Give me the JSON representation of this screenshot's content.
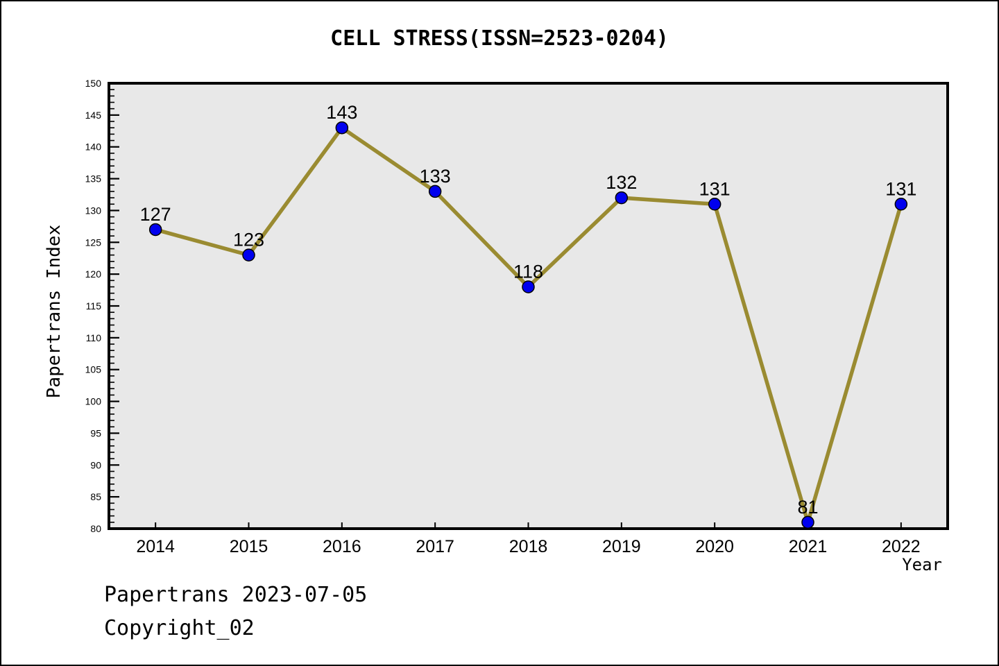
{
  "page": {
    "footer_line1": "Papertrans 2023-07-05",
    "footer_line2": "Copyright_02"
  },
  "chart_data": {
    "type": "line",
    "title": "CELL STRESS(ISSN=2523-0204)",
    "xlabel": "Year",
    "ylabel": "Papertrans Index",
    "categories": [
      "2014",
      "2015",
      "2016",
      "2017",
      "2018",
      "2019",
      "2020",
      "2021",
      "2022"
    ],
    "series": [
      {
        "name": "Papertrans Index",
        "values": [
          127,
          123,
          143,
          133,
          118,
          132,
          131,
          81,
          131
        ]
      }
    ],
    "point_labels": [
      "127",
      "123",
      "143",
      "133",
      "118",
      "132",
      "131",
      "81",
      "131"
    ],
    "ylim": [
      80,
      150
    ],
    "y_major_step": 5,
    "y_minor_step": 1,
    "grid": false,
    "legend": null,
    "colors": {
      "line": "#9A8B31",
      "marker_fill": "#0000EE",
      "marker_edge": "#000000",
      "plot_background": "#E8E8E8",
      "frame": "#000000",
      "text": "#000000",
      "page_background": "#FFFFFF"
    }
  }
}
